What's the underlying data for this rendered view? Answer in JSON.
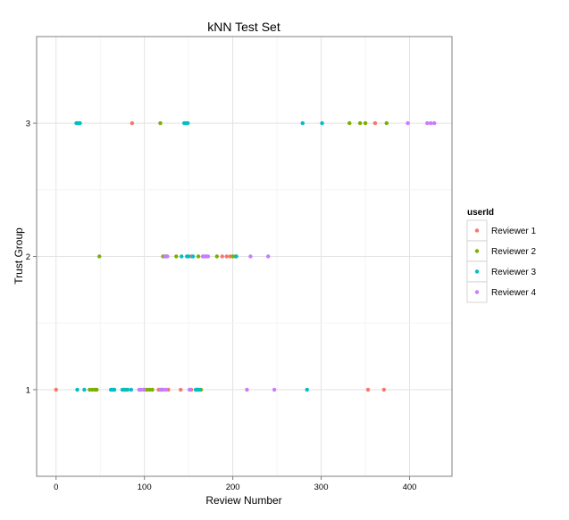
{
  "chart_data": {
    "type": "scatter",
    "title": "kNN Test Set",
    "xlabel": "Review Number",
    "ylabel": "Trust Group",
    "xlim": [
      -22,
      448
    ],
    "ylim": [
      0.35,
      3.65
    ],
    "xticks": [
      0,
      100,
      200,
      300,
      400
    ],
    "yticks": [
      1,
      2,
      3
    ],
    "grid": true,
    "legend_placement": "right",
    "legend_title": "userId",
    "series": [
      {
        "name": "Reviewer 1",
        "color": "#f8766d",
        "points": [
          [
            0,
            1
          ],
          [
            116,
            1
          ],
          [
            127,
            1
          ],
          [
            141,
            1
          ],
          [
            153,
            1
          ],
          [
            353,
            1
          ],
          [
            371,
            1
          ],
          [
            86,
            3
          ],
          [
            361,
            3
          ],
          [
            153,
            2
          ],
          [
            188,
            2
          ],
          [
            193,
            2
          ],
          [
            197,
            2
          ]
        ]
      },
      {
        "name": "Reviewer 2",
        "color": "#7cae00",
        "points": [
          [
            38,
            1
          ],
          [
            41,
            1
          ],
          [
            44,
            1
          ],
          [
            46,
            1
          ],
          [
            79,
            1
          ],
          [
            100,
            1
          ],
          [
            103,
            1
          ],
          [
            106,
            1
          ],
          [
            109,
            1
          ],
          [
            120,
            1
          ],
          [
            160,
            1
          ],
          [
            164,
            1
          ],
          [
            49,
            2
          ],
          [
            121,
            2
          ],
          [
            124,
            2
          ],
          [
            136,
            2
          ],
          [
            161,
            2
          ],
          [
            182,
            2
          ],
          [
            200,
            2
          ],
          [
            203,
            2
          ],
          [
            118,
            3
          ],
          [
            332,
            3
          ],
          [
            344,
            3
          ],
          [
            350,
            3
          ],
          [
            374,
            3
          ]
        ]
      },
      {
        "name": "Reviewer 3",
        "color": "#00bfc4",
        "points": [
          [
            24,
            1
          ],
          [
            32,
            1
          ],
          [
            62,
            1
          ],
          [
            64,
            1
          ],
          [
            66,
            1
          ],
          [
            75,
            1
          ],
          [
            77,
            1
          ],
          [
            81,
            1
          ],
          [
            85,
            1
          ],
          [
            158,
            1
          ],
          [
            160,
            1
          ],
          [
            162,
            1
          ],
          [
            284,
            1
          ],
          [
            142,
            2
          ],
          [
            148,
            2
          ],
          [
            150,
            2
          ],
          [
            155,
            2
          ],
          [
            204,
            2
          ],
          [
            23,
            3
          ],
          [
            25,
            3
          ],
          [
            27,
            3
          ],
          [
            145,
            3
          ],
          [
            147,
            3
          ],
          [
            149,
            3
          ],
          [
            279,
            3
          ],
          [
            301,
            3
          ]
        ]
      },
      {
        "name": "Reviewer 4",
        "color": "#c77cff",
        "points": [
          [
            94,
            1
          ],
          [
            96,
            1
          ],
          [
            99,
            1
          ],
          [
            118,
            1
          ],
          [
            121,
            1
          ],
          [
            124,
            1
          ],
          [
            151,
            1
          ],
          [
            216,
            1
          ],
          [
            247,
            1
          ],
          [
            123,
            2
          ],
          [
            126,
            2
          ],
          [
            166,
            2
          ],
          [
            168,
            2
          ],
          [
            170,
            2
          ],
          [
            172,
            2
          ],
          [
            220,
            2
          ],
          [
            240,
            2
          ],
          [
            398,
            3
          ],
          [
            420,
            3
          ],
          [
            424,
            3
          ],
          [
            428,
            3
          ]
        ]
      }
    ]
  }
}
